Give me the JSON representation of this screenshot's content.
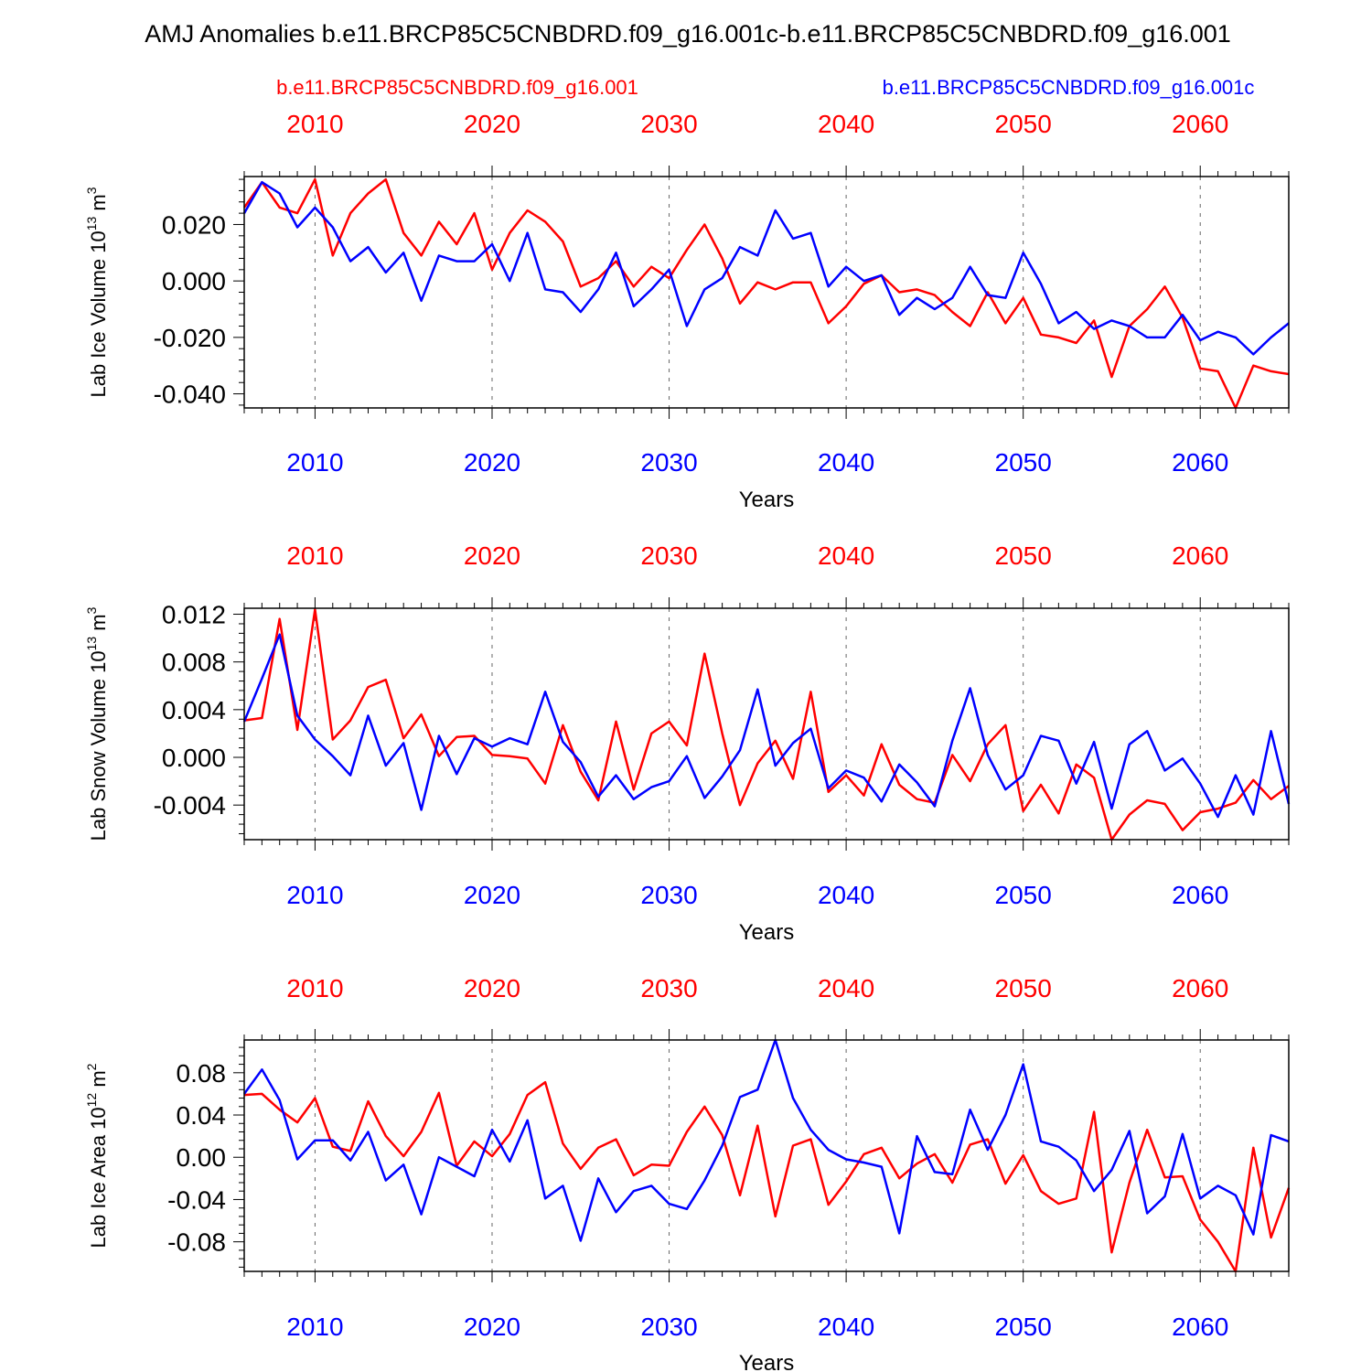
{
  "title": "AMJ Anomalies b.e11.BRCP85C5CNBDRD.f09_g16.001c-b.e11.BRCP85C5CNBDRD.f09_g16.001",
  "legend": {
    "red_label": "b.e11.BRCP85C5CNBDRD.f09_g16.001",
    "blue_label": "b.e11.BRCP85C5CNBDRD.f09_g16.001c"
  },
  "colors": {
    "red": "#ff0000",
    "blue": "#0000ff",
    "axis": "#000000"
  },
  "chart_data": [
    {
      "type": "line",
      "title": "",
      "xlabel": "Years",
      "ylabel": "Lab Ice Volume 10",
      "ylabel_exp": "13",
      "ylabel_unit": " m",
      "ylabel_unit_exp": "3",
      "xlim": [
        2006,
        2065
      ],
      "ylim": [
        -0.045,
        0.037
      ],
      "xticks": [
        2010,
        2020,
        2030,
        2040,
        2050,
        2060
      ],
      "xtick_labels": [
        "2010",
        "2020",
        "2030",
        "2040",
        "2050",
        "2060"
      ],
      "yticks": [
        -0.04,
        -0.02,
        0.0,
        0.02
      ],
      "ytick_labels": [
        "-0.040",
        "-0.020",
        "0.000",
        "0.020"
      ],
      "x_start": 2006,
      "series": [
        {
          "name": "b.e11.BRCP85C5CNBDRD.f09_g16.001",
          "color": "red",
          "values": [
            0.026,
            0.035,
            0.026,
            0.024,
            0.036,
            0.009,
            0.024,
            0.031,
            0.036,
            0.017,
            0.009,
            0.021,
            0.013,
            0.024,
            0.004,
            0.017,
            0.025,
            0.021,
            0.014,
            -0.002,
            0.001,
            0.007,
            -0.002,
            0.005,
            0.001,
            0.011,
            0.02,
            0.008,
            -0.008,
            -0.0005,
            -0.003,
            -0.0005,
            -0.0005,
            -0.015,
            -0.009,
            -0.001,
            0.002,
            -0.004,
            -0.003,
            -0.005,
            -0.011,
            -0.016,
            -0.004,
            -0.015,
            -0.006,
            -0.019,
            -0.02,
            -0.022,
            -0.014,
            -0.034,
            -0.016,
            -0.01,
            -0.002,
            -0.013,
            -0.031,
            -0.032,
            -0.045,
            -0.03,
            -0.032,
            -0.033
          ]
        },
        {
          "name": "b.e11.BRCP85C5CNBDRD.f09_g16.001c",
          "color": "blue",
          "values": [
            0.024,
            0.035,
            0.031,
            0.019,
            0.026,
            0.019,
            0.007,
            0.012,
            0.003,
            0.01,
            -0.007,
            0.009,
            0.007,
            0.007,
            0.013,
            0.0,
            0.017,
            -0.003,
            -0.004,
            -0.011,
            -0.003,
            0.01,
            -0.009,
            -0.003,
            0.004,
            -0.016,
            -0.003,
            0.001,
            0.012,
            0.009,
            0.025,
            0.015,
            0.017,
            -0.002,
            0.005,
            0.0,
            0.002,
            -0.012,
            -0.006,
            -0.01,
            -0.006,
            0.005,
            -0.005,
            -0.006,
            0.01,
            -0.001,
            -0.015,
            -0.011,
            -0.017,
            -0.014,
            -0.016,
            -0.02,
            -0.02,
            -0.012,
            -0.021,
            -0.018,
            -0.02,
            -0.026,
            -0.02,
            -0.015
          ]
        }
      ]
    },
    {
      "type": "line",
      "title": "",
      "xlabel": "Years",
      "ylabel": "Lab Snow Volume 10",
      "ylabel_exp": "13",
      "ylabel_unit": " m",
      "ylabel_unit_exp": "3",
      "xlim": [
        2006,
        2065
      ],
      "ylim": [
        -0.0069,
        0.0125
      ],
      "xticks": [
        2010,
        2020,
        2030,
        2040,
        2050,
        2060
      ],
      "xtick_labels": [
        "2010",
        "2020",
        "2030",
        "2040",
        "2050",
        "2060"
      ],
      "yticks": [
        -0.004,
        0.0,
        0.004,
        0.008,
        0.012
      ],
      "ytick_labels": [
        "-0.004",
        "0.000",
        "0.004",
        "0.008",
        "0.012"
      ],
      "x_start": 2006,
      "series": [
        {
          "name": "b.e11.BRCP85C5CNBDRD.f09_g16.001",
          "color": "red",
          "values": [
            0.0031,
            0.0033,
            0.0116,
            0.0023,
            0.0124,
            0.0015,
            0.0031,
            0.0059,
            0.0065,
            0.0016,
            0.0036,
            0.0001,
            0.0017,
            0.0018,
            0.0002,
            0.0001,
            -0.0001,
            -0.0022,
            0.0027,
            -0.0012,
            -0.0036,
            0.003,
            -0.0027,
            0.002,
            0.003,
            0.001,
            0.0087,
            0.002,
            -0.004,
            -0.0005,
            0.0014,
            -0.0018,
            0.0055,
            -0.0029,
            -0.0015,
            -0.0032,
            0.0011,
            -0.0023,
            -0.0035,
            -0.0038,
            0.0002,
            -0.002,
            0.0011,
            0.0027,
            -0.0045,
            -0.0023,
            -0.0047,
            -0.0006,
            -0.0017,
            -0.0069,
            -0.0048,
            -0.0036,
            -0.0039,
            -0.0061,
            -0.0046,
            -0.0043,
            -0.0038,
            -0.0019,
            -0.0035,
            -0.0024
          ]
        },
        {
          "name": "b.e11.BRCP85C5CNBDRD.f09_g16.001c",
          "color": "blue",
          "values": [
            0.003,
            0.0066,
            0.0103,
            0.0035,
            0.0015,
            0.0001,
            -0.0015,
            0.0035,
            -0.0007,
            0.0012,
            -0.0044,
            0.0018,
            -0.0014,
            0.0016,
            0.0009,
            0.0016,
            0.0011,
            0.0055,
            0.0013,
            -0.0004,
            -0.0033,
            -0.0015,
            -0.0035,
            -0.0025,
            -0.002,
            0.0001,
            -0.0034,
            -0.0016,
            0.0006,
            0.0057,
            -0.0007,
            0.0012,
            0.0024,
            -0.0026,
            -0.0011,
            -0.0017,
            -0.0037,
            -0.0006,
            -0.0021,
            -0.0041,
            0.0014,
            0.0058,
            0.0002,
            -0.0027,
            -0.0015,
            0.0018,
            0.0014,
            -0.0022,
            0.0013,
            -0.0043,
            0.0011,
            0.0022,
            -0.0011,
            -0.0001,
            -0.0022,
            -0.005,
            -0.0015,
            -0.0048,
            0.0022,
            -0.0039
          ]
        }
      ]
    },
    {
      "type": "line",
      "title": "",
      "xlabel": "Years",
      "ylabel": "Lab Ice Area 10",
      "ylabel_exp": "12",
      "ylabel_unit": " m",
      "ylabel_unit_exp": "2",
      "xlim": [
        2006,
        2065
      ],
      "ylim": [
        -0.108,
        0.111
      ],
      "xticks": [
        2010,
        2020,
        2030,
        2040,
        2050,
        2060
      ],
      "xtick_labels": [
        "2010",
        "2020",
        "2030",
        "2040",
        "2050",
        "2060"
      ],
      "yticks": [
        -0.08,
        -0.04,
        0.0,
        0.04,
        0.08
      ],
      "ytick_labels": [
        "-0.08",
        "-0.04",
        "0.00",
        "0.04",
        "0.08"
      ],
      "x_start": 2006,
      "series": [
        {
          "name": "b.e11.BRCP85C5CNBDRD.f09_g16.001",
          "color": "red",
          "values": [
            0.059,
            0.06,
            0.045,
            0.033,
            0.056,
            0.01,
            0.006,
            0.053,
            0.02,
            0.001,
            0.024,
            0.061,
            -0.008,
            0.015,
            0.001,
            0.022,
            0.059,
            0.071,
            0.013,
            -0.011,
            0.009,
            0.017,
            -0.017,
            -0.007,
            -0.008,
            0.024,
            0.048,
            0.021,
            -0.036,
            0.03,
            -0.056,
            0.011,
            0.017,
            -0.045,
            -0.023,
            0.003,
            0.009,
            -0.02,
            -0.006,
            0.003,
            -0.024,
            0.012,
            0.017,
            -0.025,
            0.002,
            -0.032,
            -0.044,
            -0.039,
            0.043,
            -0.09,
            -0.024,
            0.026,
            -0.019,
            -0.018,
            -0.059,
            -0.08,
            -0.108,
            0.009,
            -0.076,
            -0.029
          ]
        },
        {
          "name": "b.e11.BRCP85C5CNBDRD.f09_g16.001c",
          "color": "blue",
          "values": [
            0.06,
            0.083,
            0.054,
            -0.002,
            0.016,
            0.016,
            -0.003,
            0.024,
            -0.022,
            -0.007,
            -0.054,
            0.0,
            -0.009,
            -0.018,
            0.026,
            -0.004,
            0.035,
            -0.039,
            -0.027,
            -0.079,
            -0.02,
            -0.052,
            -0.032,
            -0.027,
            -0.044,
            -0.049,
            -0.022,
            0.011,
            0.057,
            0.064,
            0.111,
            0.056,
            0.026,
            0.007,
            -0.002,
            -0.005,
            -0.009,
            -0.072,
            0.02,
            -0.014,
            -0.016,
            0.045,
            0.007,
            0.04,
            0.088,
            0.015,
            0.01,
            -0.003,
            -0.032,
            -0.012,
            0.025,
            -0.053,
            -0.037,
            0.022,
            -0.039,
            -0.027,
            -0.036,
            -0.073,
            0.021,
            0.015
          ]
        }
      ]
    }
  ]
}
